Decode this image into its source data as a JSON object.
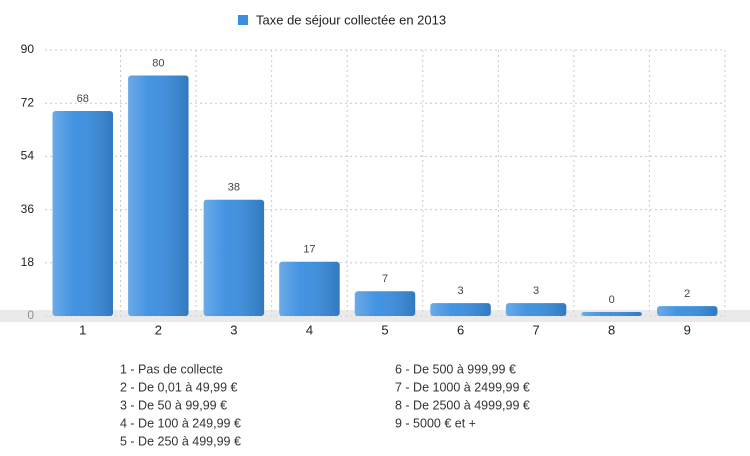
{
  "chart_data": {
    "type": "bar",
    "series": [
      {
        "name": "Taxe de séjour collectée en 2013",
        "color": "#3a8ee0",
        "values": [
          68,
          80,
          38,
          17,
          7,
          3,
          3,
          0,
          2
        ]
      }
    ],
    "categories": [
      "1",
      "2",
      "3",
      "4",
      "5",
      "6",
      "7",
      "8",
      "9"
    ],
    "ylim": [
      0,
      90
    ],
    "yticks": [
      0,
      18,
      36,
      54,
      72,
      90
    ],
    "grid": true,
    "legend": "top"
  },
  "notes": [
    "1 -  Pas de collecte",
    "2 - De 0,01 à 49,99 €",
    "3 - De 50 à 99,99 €",
    "4 - De 100 à 249,99 €",
    "5 - De 250 à 499,99 €",
    "6 - De 500 à 999,99 €",
    "7 - De 1000 à 2499,99 €",
    "8 - De 2500 à 4999,99 €",
    "9 - 5000 € et +"
  ]
}
